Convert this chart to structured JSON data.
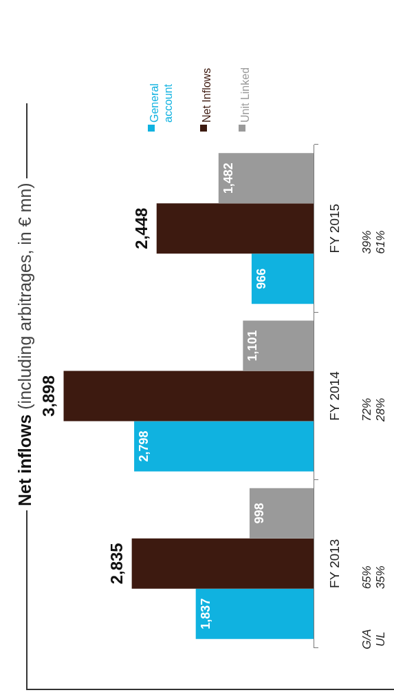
{
  "chart_data": {
    "type": "bar",
    "orientation": "horizontal",
    "title": "Net inflows",
    "subtitle": "(including arbitrages, in € mn)",
    "categories": [
      "FY 2015",
      "FY 2014",
      "FY 2013"
    ],
    "series": [
      {
        "name": "Unit Linked",
        "color": "#9a9a9a",
        "values": [
          1482,
          1101,
          998
        ],
        "value_labels": [
          "1,482",
          "1,101",
          "998"
        ]
      },
      {
        "name": "Net Inflows",
        "color": "#3d1a10",
        "values": [
          2448,
          3898,
          2835
        ],
        "value_labels": [
          "2,448",
          "3,898",
          "2,835"
        ]
      },
      {
        "name": "General account",
        "color": "#10b2e0",
        "values": [
          966,
          2798,
          1837
        ],
        "value_labels": [
          "966",
          "2,798",
          "1,837"
        ]
      }
    ],
    "legend": "top",
    "grid": false,
    "annotations": [
      "G/A",
      "UL",
      "39%",
      "61%",
      "72%",
      "28%",
      "65%",
      "35%"
    ]
  }
}
